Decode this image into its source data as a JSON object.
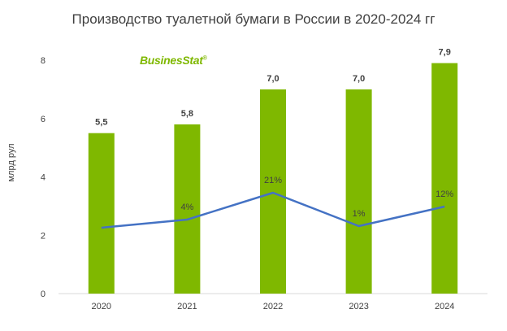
{
  "chart_data": {
    "type": "bar",
    "title": "Производство туалетной бумаги в России в 2020-2024 гг",
    "ylabel": "млрд рул",
    "xlabel": "",
    "categories": [
      "2020",
      "2021",
      "2022",
      "2023",
      "2024"
    ],
    "ylim": [
      0,
      8
    ],
    "yticks": [
      "0",
      "2",
      "4",
      "6",
      "8"
    ],
    "grid": false,
    "series": [
      {
        "type": "bar",
        "values": [
          5.5,
          5.8,
          7.0,
          7.0,
          7.9
        ],
        "labels": [
          "5,5",
          "5,8",
          "7,0",
          "7,0",
          "7,9"
        ],
        "color": "#7fb800"
      },
      {
        "type": "line",
        "growth_labels": [
          "",
          "4%",
          "21%",
          "1%",
          "12%"
        ],
        "color": "#4472c4"
      }
    ]
  },
  "logo": {
    "text": "BusinesStat",
    "mark": "®",
    "color": "#7fb800"
  }
}
